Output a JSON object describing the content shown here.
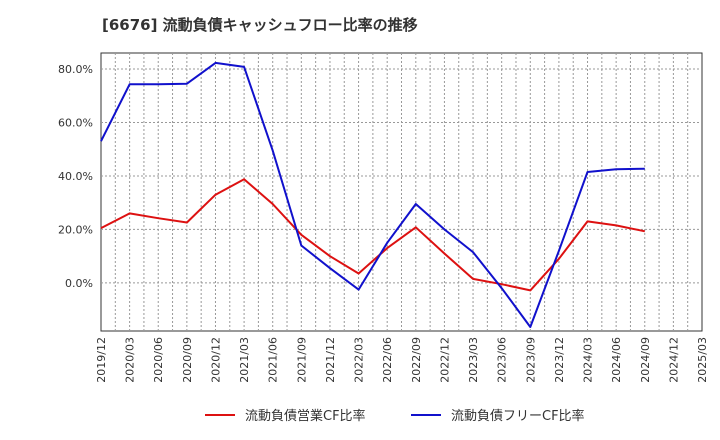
{
  "chart_data": {
    "type": "line",
    "title": "[6676]  流動負債キャッシュフロー比率の推移",
    "xlabel": "",
    "ylabel": "",
    "ylim": [
      -18,
      86
    ],
    "y_ticks": [
      0,
      20,
      40,
      60,
      80
    ],
    "y_tick_labels": [
      "0.0%",
      "20.0%",
      "40.0%",
      "60.0%",
      "80.0%"
    ],
    "x_tick_labels": [
      "2019/12",
      "2020/03",
      "2020/06",
      "2020/09",
      "2020/12",
      "2021/03",
      "2021/06",
      "2021/09",
      "2021/12",
      "2022/03",
      "2022/06",
      "2022/09",
      "2022/12",
      "2023/03",
      "2023/06",
      "2023/09",
      "2023/12",
      "2024/03",
      "2024/06",
      "2024/09",
      "2024/12",
      "2025/03"
    ],
    "grid": true,
    "legend_position": "bottom",
    "series": [
      {
        "name": "流動負債営業CF比率",
        "color": "#dd1111",
        "values": [
          20.5,
          26.0,
          24.2,
          22.6,
          33.0,
          38.8,
          29.5,
          18.0,
          10.0,
          3.5,
          13.0,
          20.8,
          11.0,
          1.5,
          -0.5,
          -2.8,
          9.0,
          23.0,
          21.5,
          19.3,
          null,
          null
        ]
      },
      {
        "name": "流動負債フリーCF比率",
        "color": "#1111cc",
        "values": [
          53.0,
          74.3,
          74.3,
          74.5,
          82.3,
          80.8,
          49.5,
          14.0,
          5.5,
          -2.5,
          15.0,
          29.5,
          20.0,
          11.5,
          -2.0,
          -16.5,
          12.0,
          41.5,
          42.5,
          42.7,
          null,
          null
        ]
      }
    ]
  }
}
